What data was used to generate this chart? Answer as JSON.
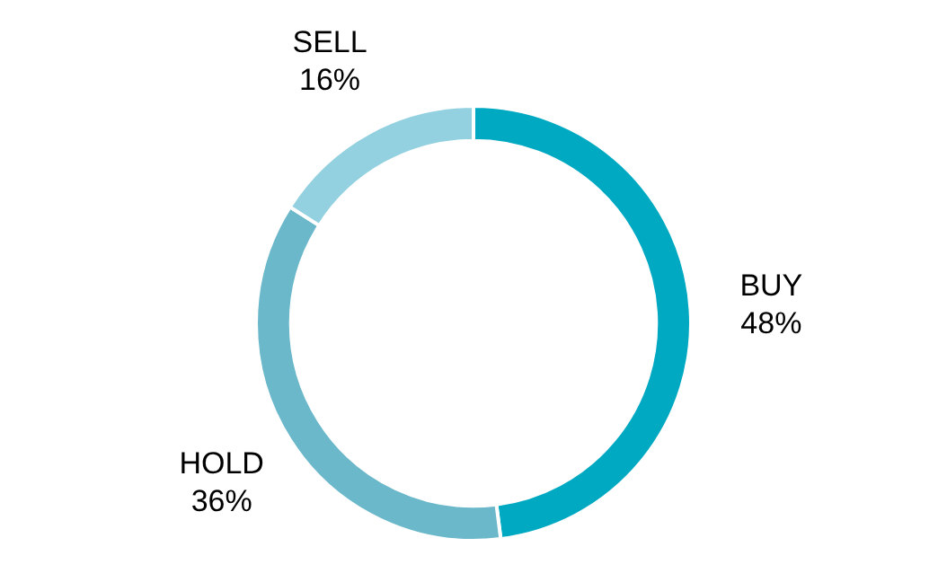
{
  "chart_data": {
    "type": "donut",
    "categories": [
      "BUY",
      "HOLD",
      "SELL"
    ],
    "values": [
      48,
      36,
      16
    ],
    "colors": [
      "#00a9c2",
      "#6bb8cb",
      "#93d1e0"
    ],
    "value_labels": [
      "48%",
      "36%",
      "16%"
    ],
    "legend": false
  }
}
